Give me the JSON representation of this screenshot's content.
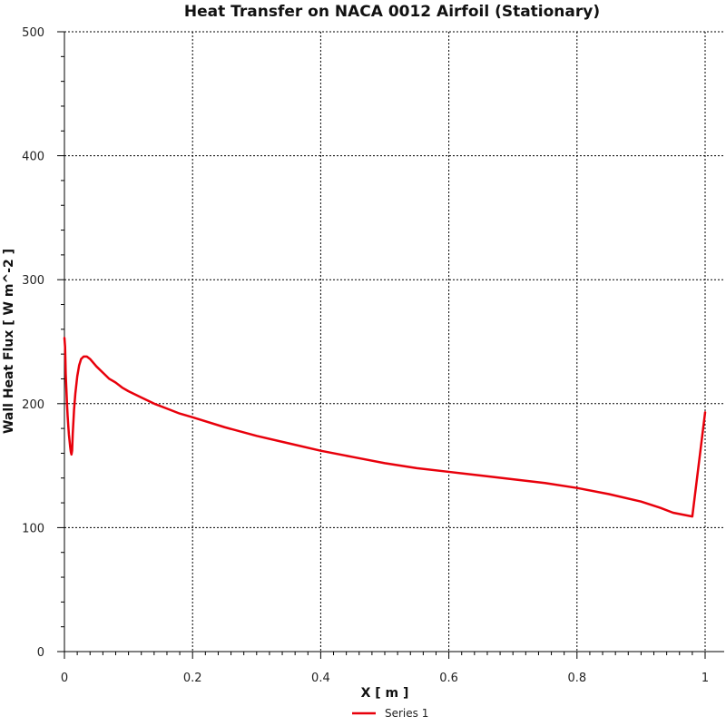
{
  "chart_data": {
    "type": "line",
    "title": "Heat Transfer on NACA 0012 Airfoil (Stationary)",
    "xlabel": "X [ m ]",
    "ylabel": "Wall Heat Flux [ W m^-2 ]",
    "xlim": [
      0,
      1
    ],
    "ylim": [
      0,
      500
    ],
    "xticks": [
      0,
      0.2,
      0.4,
      0.6,
      0.8,
      1
    ],
    "xtick_labels": [
      "0",
      "0.2",
      "0.4",
      "0.6",
      "0.8",
      "1"
    ],
    "yticks": [
      0,
      100,
      200,
      300,
      400,
      500
    ],
    "ytick_labels": [
      "0",
      "100",
      "200",
      "300",
      "400",
      "500"
    ],
    "grid": true,
    "legend_position": "bottom",
    "series": [
      {
        "name": "Series 1",
        "color": "#e8000b",
        "points": [
          [
            0.0,
            253
          ],
          [
            0.001,
            246
          ],
          [
            0.0015,
            236
          ],
          [
            0.002,
            224
          ],
          [
            0.003,
            212
          ],
          [
            0.004,
            200
          ],
          [
            0.005,
            190
          ],
          [
            0.006,
            182
          ],
          [
            0.007,
            175
          ],
          [
            0.008,
            170
          ],
          [
            0.009,
            165
          ],
          [
            0.01,
            161
          ],
          [
            0.011,
            159
          ],
          [
            0.012,
            162
          ],
          [
            0.013,
            176
          ],
          [
            0.015,
            195
          ],
          [
            0.017,
            208
          ],
          [
            0.02,
            222
          ],
          [
            0.023,
            231
          ],
          [
            0.026,
            236
          ],
          [
            0.03,
            238
          ],
          [
            0.035,
            238
          ],
          [
            0.04,
            236
          ],
          [
            0.045,
            233
          ],
          [
            0.05,
            230
          ],
          [
            0.06,
            225
          ],
          [
            0.07,
            220
          ],
          [
            0.08,
            217
          ],
          [
            0.09,
            213
          ],
          [
            0.1,
            210
          ],
          [
            0.12,
            205
          ],
          [
            0.14,
            200
          ],
          [
            0.16,
            196
          ],
          [
            0.18,
            192
          ],
          [
            0.2,
            189
          ],
          [
            0.25,
            181
          ],
          [
            0.3,
            174
          ],
          [
            0.35,
            168
          ],
          [
            0.4,
            162
          ],
          [
            0.45,
            157
          ],
          [
            0.5,
            152
          ],
          [
            0.55,
            148
          ],
          [
            0.6,
            145
          ],
          [
            0.65,
            142
          ],
          [
            0.7,
            139
          ],
          [
            0.75,
            136
          ],
          [
            0.8,
            132
          ],
          [
            0.85,
            127
          ],
          [
            0.9,
            121
          ],
          [
            0.93,
            116
          ],
          [
            0.95,
            112
          ],
          [
            0.98,
            109
          ],
          [
            1.0,
            193
          ]
        ]
      }
    ]
  }
}
